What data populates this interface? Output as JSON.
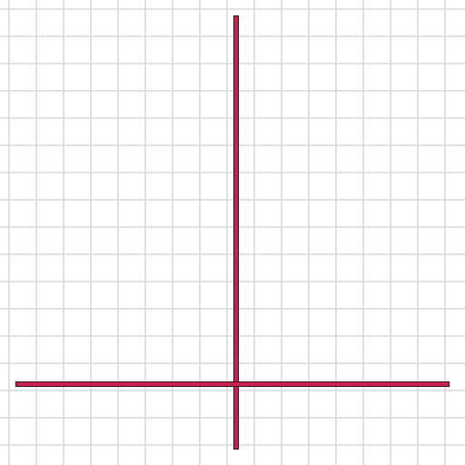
{
  "colors": {
    "background": "#ffffff",
    "grid": "#d9d9d9",
    "axis_fill": "#c8234f",
    "axis_outline": "#3a0f1c"
  }
}
